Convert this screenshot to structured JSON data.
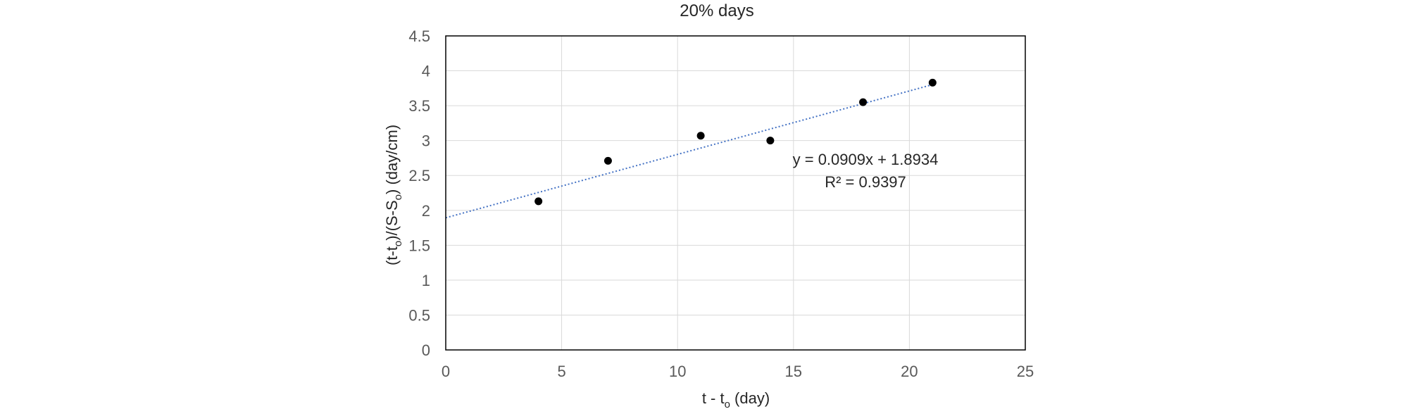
{
  "chart_data": {
    "type": "scatter",
    "title": "20% days",
    "xlabel": {
      "main": "t - t",
      "sub": "o",
      "tail": " (day)"
    },
    "ylabel": {
      "p1": "(t-t",
      "sub1": "o",
      "p2": ")/(S-S",
      "sub2": "o",
      "p3": ") (day/cm)"
    },
    "xlim": [
      0,
      25
    ],
    "ylim": [
      0,
      4.5
    ],
    "xticks": [
      0,
      5,
      10,
      15,
      20,
      25
    ],
    "yticks": [
      0,
      0.5,
      1,
      1.5,
      2,
      2.5,
      3,
      3.5,
      4,
      4.5
    ],
    "xtick_labels": [
      "0",
      "5",
      "10",
      "15",
      "20",
      "25"
    ],
    "ytick_labels": [
      "0",
      "0.5",
      "1",
      "1.5",
      "2",
      "2.5",
      "3",
      "3.5",
      "4",
      "4.5"
    ],
    "grid": true,
    "series": [
      {
        "x": [
          4,
          7,
          11,
          14,
          18,
          21
        ],
        "y": [
          2.13,
          2.71,
          3.07,
          3.0,
          3.55,
          3.83
        ],
        "color": "#000000",
        "marker": "circle"
      }
    ],
    "trendline": {
      "slope": 0.0909,
      "intercept": 1.8934,
      "x_range": [
        0,
        21
      ],
      "color": "#4472C4",
      "style": "dotted",
      "equation_label": "y = 0.0909x + 1.8934",
      "r2_label": "R² = 0.9397"
    }
  }
}
